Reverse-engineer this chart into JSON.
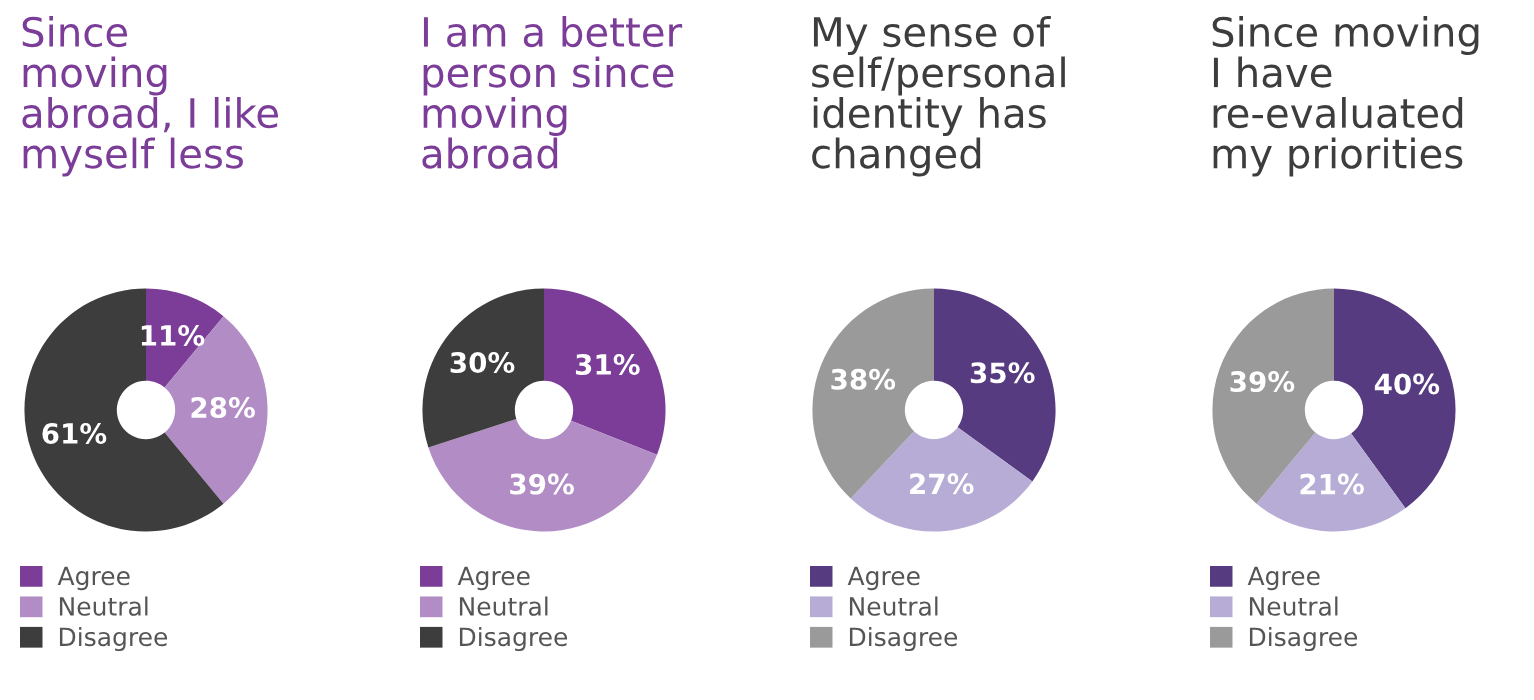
{
  "chart_data": [
    {
      "type": "donut",
      "title": "Since\nmoving\nabroad, I like\nmyself less",
      "categories": [
        "Agree",
        "Neutral",
        "Disagree"
      ],
      "values": [
        11,
        28,
        61
      ],
      "value_labels": [
        "11%",
        "28%",
        "61%"
      ],
      "colors": [
        "#7b3d98",
        "#b28cc4",
        "#3d3d3d"
      ],
      "legend": "bottom"
    },
    {
      "type": "donut",
      "title": "I am a better\nperson since\nmoving\nabroad",
      "categories": [
        "Agree",
        "Neutral",
        "Disagree"
      ],
      "values": [
        31,
        39,
        30
      ],
      "value_labels": [
        "31%",
        "39%",
        "30%"
      ],
      "colors": [
        "#7b3d98",
        "#b28cc4",
        "#3d3d3d"
      ],
      "legend": "bottom"
    },
    {
      "type": "donut",
      "title": "My sense of\nself/personal\nidentity has\nchanged",
      "categories": [
        "Agree",
        "Neutral",
        "Disagree"
      ],
      "values": [
        35,
        27,
        38
      ],
      "value_labels": [
        "35%",
        "27%",
        "38%"
      ],
      "colors": [
        "#573b80",
        "#b6acd6",
        "#9a9a9a"
      ],
      "legend": "bottom"
    },
    {
      "type": "donut",
      "title": "Since moving\nI have\nre-evaluated\nmy priorities",
      "categories": [
        "Agree",
        "Neutral",
        "Disagree"
      ],
      "values": [
        40,
        21,
        39
      ],
      "value_labels": [
        "40%",
        "21%",
        "39%"
      ],
      "colors": [
        "#573b80",
        "#b6acd6",
        "#9a9a9a"
      ],
      "legend": "bottom"
    }
  ]
}
